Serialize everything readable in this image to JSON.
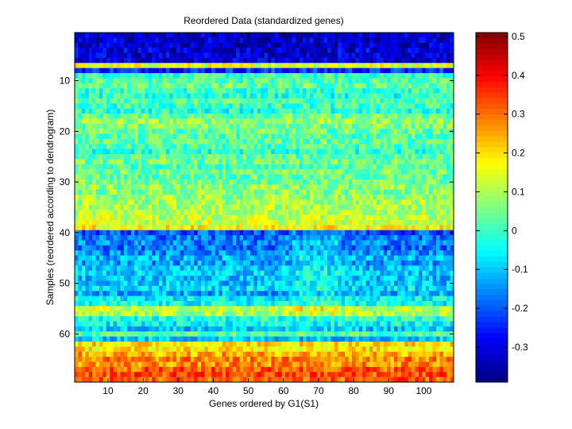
{
  "chart_data": {
    "type": "heatmap",
    "title": "Reordered Data (standardized genes)",
    "xlabel": "Genes ordered by G1(S1)",
    "ylabel": "Samples (reordered according to dendrogram)",
    "n_cols": 108,
    "n_rows": 69,
    "x_ticks": [
      "10",
      "20",
      "30",
      "40",
      "50",
      "60",
      "70",
      "80",
      "90",
      "100"
    ],
    "y_ticks": [
      "10",
      "20",
      "30",
      "40",
      "50",
      "60"
    ],
    "colorbar": {
      "ticks": [
        "0.5",
        "0.4",
        "0.3",
        "0.2",
        "0.1",
        "0",
        "-0.1",
        "-0.2",
        "-0.3"
      ],
      "min": -0.39,
      "max": 0.51,
      "colormap": "jet"
    },
    "row_profile": [
      -0.33,
      -0.32,
      -0.33,
      -0.31,
      -0.31,
      -0.32,
      0.15,
      -0.24,
      0.0,
      0.02,
      0.04,
      0.0,
      -0.02,
      0.02,
      0.0,
      -0.02,
      0.04,
      0.08,
      0.06,
      0.04,
      0.02,
      0.03,
      0.01,
      -0.02,
      0.03,
      0.04,
      0.02,
      0.05,
      0.03,
      0.05,
      0.07,
      0.06,
      0.08,
      0.09,
      0.1,
      0.11,
      0.12,
      0.13,
      0.17,
      -0.2,
      -0.17,
      -0.16,
      -0.18,
      -0.15,
      -0.12,
      -0.14,
      -0.1,
      -0.09,
      -0.11,
      -0.1,
      -0.08,
      -0.13,
      -0.06,
      -0.05,
      0.12,
      0.1,
      -0.02,
      -0.05,
      -0.1,
      0.02,
      -0.1,
      0.2,
      0.19,
      0.25,
      0.28,
      0.27,
      0.32,
      0.33,
      0.31
    ]
  }
}
